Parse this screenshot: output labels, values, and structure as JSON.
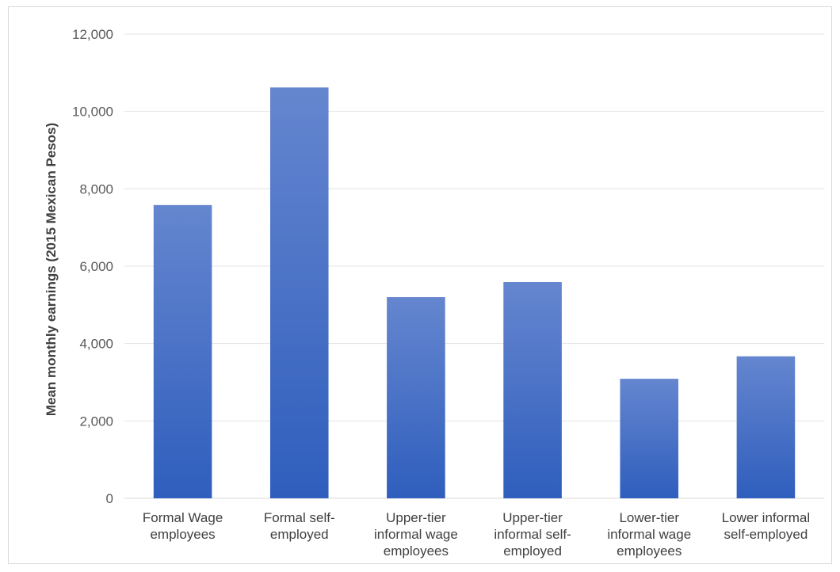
{
  "chart_data": {
    "type": "bar",
    "title": "",
    "xlabel": "",
    "ylabel": "Mean monthly earnings (2015 Mexican Pesos)",
    "categories": [
      [
        "Formal Wage",
        "employees"
      ],
      [
        "Formal self-",
        "employed"
      ],
      [
        "Upper-tier",
        "informal wage",
        "employees"
      ],
      [
        "Upper-tier",
        "informal self-",
        "employed"
      ],
      [
        "Lower-tier",
        "informal wage",
        "employees"
      ],
      [
        "Lower informal",
        "self-employed"
      ]
    ],
    "values": [
      7580,
      10620,
      5200,
      5590,
      3090,
      3670
    ],
    "ylim": [
      0,
      12000
    ],
    "yticks": [
      0,
      2000,
      4000,
      6000,
      8000,
      10000,
      12000
    ],
    "ytick_labels": [
      "0",
      "2,000",
      "4,000",
      "6,000",
      "8,000",
      "10,000",
      "12,000"
    ],
    "grid": true,
    "legend": "none",
    "colors": {
      "bar_top": "#6586cf",
      "bar_bottom": "#2f5ebd",
      "grid": "#e3e3e3",
      "axis": "#d9d9d9"
    }
  }
}
